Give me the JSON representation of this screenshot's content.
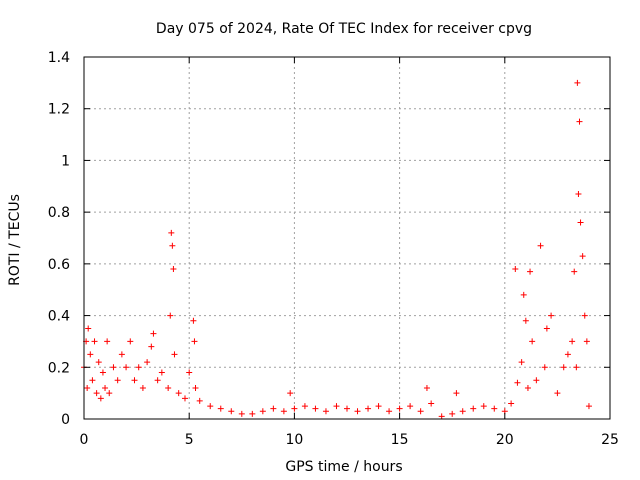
{
  "chart_data": {
    "type": "scatter",
    "title": "Day 075 of 2024, Rate Of TEC Index for receiver cpvg",
    "xlabel": "GPS time / hours",
    "ylabel": "ROTI / TECUs",
    "xlim": [
      0,
      25
    ],
    "ylim": [
      0,
      1.4
    ],
    "x_ticks": [
      0,
      5,
      10,
      15,
      20,
      25
    ],
    "x_tick_labels": [
      "0",
      "5",
      "10",
      "15",
      "20",
      "25"
    ],
    "y_ticks": [
      0,
      0.2,
      0.4,
      0.6,
      0.8,
      1.0,
      1.2,
      1.4
    ],
    "y_tick_labels": [
      "0",
      "0.2",
      "0.4",
      "0.6",
      "0.8",
      "1",
      "1.2",
      "1.4"
    ],
    "grid": true,
    "marker": "+",
    "series": [
      {
        "name": "ROTI",
        "color": "#ff0000",
        "x": [
          0.0,
          0.1,
          0.15,
          0.2,
          0.3,
          0.4,
          0.5,
          0.6,
          0.7,
          0.8,
          0.9,
          1.0,
          1.1,
          1.2,
          1.4,
          1.6,
          1.8,
          2.0,
          2.2,
          2.4,
          2.6,
          2.8,
          3.0,
          3.2,
          3.3,
          3.5,
          3.7,
          4.0,
          4.1,
          4.15,
          4.2,
          4.25,
          4.3,
          4.5,
          4.8,
          5.0,
          5.2,
          5.25,
          5.3,
          5.5,
          6.0,
          6.5,
          7.0,
          7.5,
          8.0,
          8.5,
          9.0,
          9.5,
          9.8,
          10.0,
          10.5,
          11.0,
          11.5,
          12.0,
          12.5,
          13.0,
          13.5,
          14.0,
          14.5,
          15.0,
          15.5,
          16.0,
          16.3,
          16.5,
          17.0,
          17.5,
          17.7,
          18.0,
          18.5,
          19.0,
          19.5,
          20.0,
          20.3,
          20.5,
          20.6,
          20.8,
          20.9,
          21.0,
          21.1,
          21.2,
          21.3,
          21.5,
          21.7,
          21.9,
          22.0,
          22.2,
          22.5,
          22.8,
          23.0,
          23.2,
          23.3,
          23.4,
          23.45,
          23.5,
          23.55,
          23.6,
          23.7,
          23.8,
          23.9,
          24.0
        ],
        "y": [
          0.2,
          0.3,
          0.12,
          0.35,
          0.25,
          0.15,
          0.3,
          0.1,
          0.22,
          0.08,
          0.18,
          0.12,
          0.3,
          0.1,
          0.2,
          0.15,
          0.25,
          0.2,
          0.3,
          0.15,
          0.2,
          0.12,
          0.22,
          0.28,
          0.33,
          0.15,
          0.18,
          0.12,
          0.4,
          0.72,
          0.67,
          0.58,
          0.25,
          0.1,
          0.08,
          0.18,
          0.38,
          0.3,
          0.12,
          0.07,
          0.05,
          0.04,
          0.03,
          0.02,
          0.02,
          0.03,
          0.04,
          0.03,
          0.1,
          0.04,
          0.05,
          0.04,
          0.03,
          0.05,
          0.04,
          0.03,
          0.04,
          0.05,
          0.03,
          0.04,
          0.05,
          0.03,
          0.12,
          0.06,
          0.01,
          0.02,
          0.1,
          0.03,
          0.04,
          0.05,
          0.04,
          0.03,
          0.06,
          0.58,
          0.14,
          0.22,
          0.48,
          0.38,
          0.12,
          0.57,
          0.3,
          0.15,
          0.67,
          0.2,
          0.35,
          0.4,
          0.1,
          0.2,
          0.25,
          0.3,
          0.57,
          0.2,
          1.3,
          0.87,
          1.15,
          0.76,
          0.63,
          0.4,
          0.3,
          0.05
        ]
      }
    ]
  }
}
